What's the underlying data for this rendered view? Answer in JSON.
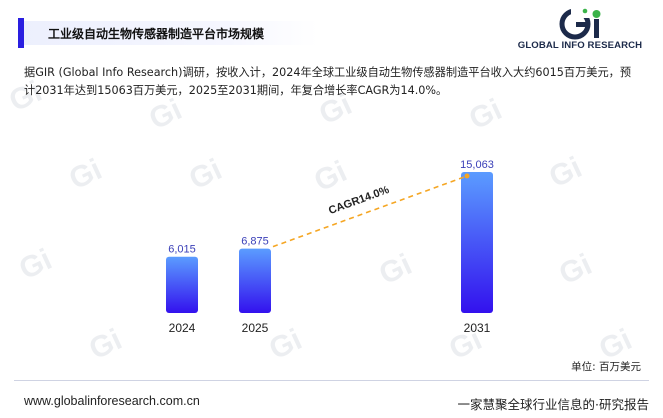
{
  "header": {
    "title": "工业级自动生物传感器制造平台市场规模",
    "logo_text": "GLOBAL INFO RESEARCH",
    "accent_color": "#2a1fe0"
  },
  "description": "据GIR (Global Info Research)调研，按收入计，2024年全球工业级自动生物传感器制造平台收入大约6015百万美元，预计2031年达到15063百万美元，2025至2031期间，年复合增长率CAGR为14.0%。",
  "chart_data": {
    "type": "bar",
    "categories": [
      "2024",
      "2025",
      "2031"
    ],
    "values": [
      6015,
      6875,
      15063
    ],
    "value_labels": [
      "6,015",
      "6,875",
      "15,063"
    ],
    "annotation": "CAGR14.0%",
    "unit_label": "单位: 百万美元",
    "bar_color_top": "#5b9cff",
    "bar_color_bottom": "#3311ee",
    "trend_line_color": "#f5a623",
    "ylim": [
      0,
      15063
    ],
    "grid": false
  },
  "footer": {
    "website": "www.globalinforesearch.com.cn",
    "slogan": "一家慧聚全球行业信息的·研究报告"
  }
}
